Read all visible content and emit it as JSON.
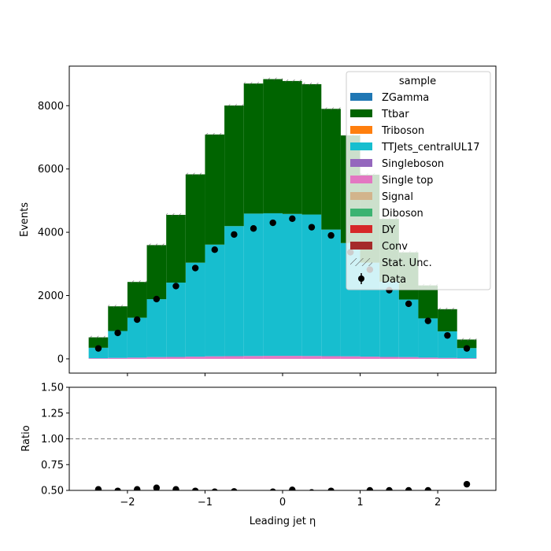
{
  "chart_data": [
    {
      "type": "bar",
      "stacked": true,
      "xlabel": "Leading jet  η",
      "ylabel": "Events",
      "xlim": [
        -2.75,
        2.75
      ],
      "ylim": [
        -450,
        9250
      ],
      "xticks": [
        -2,
        -1,
        0,
        1,
        2
      ],
      "xtick_labels": [
        "−2",
        "−1",
        "0",
        "1",
        "2"
      ],
      "yticks": [
        0,
        2000,
        4000,
        6000,
        8000
      ],
      "ytick_labels": [
        "0",
        "2000",
        "4000",
        "6000",
        "8000"
      ],
      "bin_edges": [
        -2.5,
        -2.25,
        -2.0,
        -1.75,
        -1.5,
        -1.25,
        -1.0,
        -0.75,
        -0.5,
        -0.25,
        0.0,
        0.25,
        0.5,
        0.75,
        1.0,
        1.25,
        1.5,
        1.75,
        2.0,
        2.25,
        2.5
      ],
      "bin_centers": [
        -2.375,
        -2.125,
        -1.875,
        -1.625,
        -1.375,
        -1.125,
        -0.875,
        -0.625,
        -0.375,
        -0.125,
        0.125,
        0.375,
        0.625,
        0.875,
        1.125,
        1.375,
        1.625,
        1.875,
        2.125,
        2.375
      ],
      "series": [
        {
          "name": "Single top",
          "color": "#e377c2",
          "values": [
            20,
            30,
            40,
            55,
            60,
            70,
            80,
            85,
            90,
            95,
            95,
            90,
            85,
            80,
            70,
            60,
            55,
            40,
            30,
            20
          ]
        },
        {
          "name": "TTJets_centralUL17",
          "color": "#17becf",
          "values": [
            330,
            850,
            1260,
            1830,
            2350,
            2970,
            3530,
            4110,
            4500,
            4505,
            4485,
            4470,
            4000,
            3580,
            2970,
            2380,
            1820,
            1240,
            840,
            320
          ]
        },
        {
          "name": "Ttbar",
          "color": "#006400",
          "values": [
            330,
            780,
            1130,
            1710,
            2140,
            2790,
            3480,
            3810,
            4110,
            4240,
            4200,
            4120,
            3815,
            3400,
            2780,
            1980,
            1490,
            1040,
            700,
            270
          ]
        }
      ],
      "stack_totals": [
        680,
        1660,
        2430,
        3595,
        4550,
        5830,
        7090,
        8005,
        8700,
        8840,
        8780,
        8680,
        7900,
        7060,
        5820,
        4420,
        3365,
        2320,
        1570,
        610
      ],
      "data_points": [
        330,
        820,
        1240,
        1890,
        2300,
        2870,
        3450,
        3930,
        4120,
        4300,
        4430,
        4160,
        3900,
        3370,
        2820,
        2170,
        1740,
        1200,
        740,
        330
      ],
      "legend": {
        "title": "sample",
        "placement": "upper right",
        "entries": [
          {
            "label": "ZGamma",
            "color": "#1f77b4",
            "kind": "patch"
          },
          {
            "label": "Ttbar",
            "color": "#006400",
            "kind": "patch"
          },
          {
            "label": "Triboson",
            "color": "#ff7f0e",
            "kind": "patch"
          },
          {
            "label": "TTJets_centralUL17",
            "color": "#17becf",
            "kind": "patch"
          },
          {
            "label": "Singleboson",
            "color": "#9467bd",
            "kind": "patch"
          },
          {
            "label": "Single top",
            "color": "#e377c2",
            "kind": "patch"
          },
          {
            "label": "Signal",
            "color": "#d2b48c",
            "kind": "patch"
          },
          {
            "label": "Diboson",
            "color": "#3cb371",
            "kind": "patch"
          },
          {
            "label": "DY",
            "color": "#d62728",
            "kind": "patch"
          },
          {
            "label": "Conv",
            "color": "#a52a2a",
            "kind": "patch"
          },
          {
            "label": "Stat. Unc.",
            "color": "#555555",
            "kind": "hatch"
          },
          {
            "label": "Data",
            "color": "#000000",
            "kind": "marker"
          }
        ]
      }
    },
    {
      "type": "scatter",
      "xlabel": "Leading jet  η",
      "ylabel": "Ratio",
      "xlim": [
        -2.75,
        2.75
      ],
      "ylim": [
        0.5,
        1.5
      ],
      "xticks": [
        -2,
        -1,
        0,
        1,
        2
      ],
      "xtick_labels": [
        "−2",
        "−1",
        "0",
        "1",
        "2"
      ],
      "yticks": [
        0.5,
        0.75,
        1.0,
        1.25,
        1.5
      ],
      "ytick_labels": [
        "0.50",
        "0.75",
        "1.00",
        "1.25",
        "1.50"
      ],
      "reference_line": 1.0,
      "points": [
        {
          "x": -2.375,
          "y": 0.51
        },
        {
          "x": -2.125,
          "y": 0.495
        },
        {
          "x": -1.875,
          "y": 0.51
        },
        {
          "x": -1.625,
          "y": 0.525
        },
        {
          "x": -1.375,
          "y": 0.51
        },
        {
          "x": -1.125,
          "y": 0.495
        },
        {
          "x": -0.875,
          "y": 0.487
        },
        {
          "x": -0.625,
          "y": 0.49
        },
        {
          "x": -0.125,
          "y": 0.487
        },
        {
          "x": 0.125,
          "y": 0.505
        },
        {
          "x": 0.375,
          "y": 0.48
        },
        {
          "x": 0.625,
          "y": 0.495
        },
        {
          "x": 1.125,
          "y": 0.5
        },
        {
          "x": 1.375,
          "y": 0.5
        },
        {
          "x": 1.625,
          "y": 0.5
        },
        {
          "x": 1.875,
          "y": 0.5
        },
        {
          "x": 2.375,
          "y": 0.56
        }
      ]
    }
  ]
}
